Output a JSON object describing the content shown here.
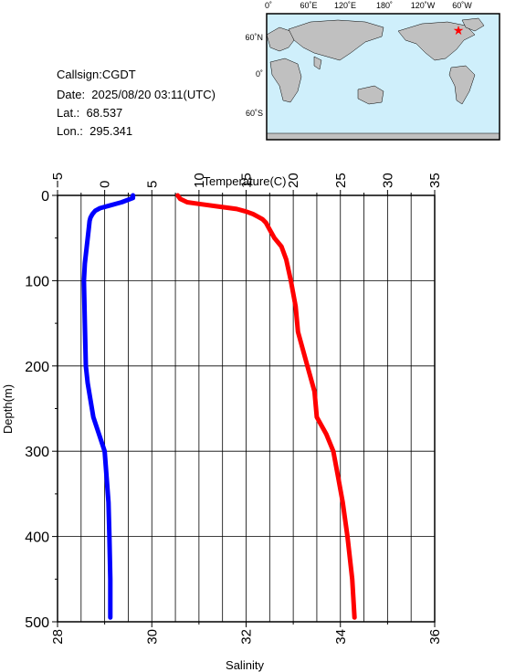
{
  "info": {
    "callsign": "Callsign:CGDT",
    "date": "Date:  2025/08/20 03:11(UTC)",
    "lat": "Lat.:  68.537",
    "lon": "Lon.:  295.341"
  },
  "map": {
    "top_labels": [
      "0˚",
      "60˚E",
      "120˚E",
      "180˚",
      "120˚W",
      "60˚W"
    ],
    "side_labels": [
      "60˚N",
      "0˚",
      "60˚S"
    ],
    "ocean_color": "#cfeffb",
    "land_color": "#c0c0c0",
    "marker": "star-icon",
    "marker_color": "#ff0000"
  },
  "chart_data": {
    "type": "line",
    "x_top_label": "Temperature(C)",
    "x_bottom_label": "Salinity",
    "ylabel": "Depth(m)",
    "temperature_ticks": [
      "−5",
      "0",
      "5",
      "10",
      "15",
      "20",
      "25",
      "30",
      "35"
    ],
    "salinity_ticks": [
      "28",
      "30",
      "32",
      "34",
      "36"
    ],
    "depth_ticks": [
      "0",
      "100",
      "200",
      "300",
      "400",
      "500"
    ],
    "xlim_temperature": [
      -5,
      35
    ],
    "xlim_salinity": [
      28,
      36
    ],
    "ylim_depth": [
      500,
      0
    ],
    "series": [
      {
        "axis": "temperature",
        "color": "#0000ff",
        "depth": [
          0,
          3,
          8,
          12,
          15,
          18,
          22,
          26,
          30,
          40,
          60,
          80,
          100,
          150,
          200,
          220,
          240,
          260,
          280,
          300,
          330,
          360,
          400,
          450,
          495
        ],
        "values": [
          3.0,
          3.0,
          1.8,
          0.5,
          -0.5,
          -1.0,
          -1.3,
          -1.5,
          -1.6,
          -1.7,
          -1.9,
          -2.1,
          -2.2,
          -2.1,
          -2.0,
          -1.8,
          -1.5,
          -1.2,
          -0.6,
          0.0,
          0.2,
          0.4,
          0.5,
          0.6,
          0.6
        ]
      },
      {
        "axis": "salinity",
        "color": "#ff0000",
        "depth": [
          0,
          4,
          8,
          10,
          13,
          16,
          19,
          22,
          25,
          28,
          32,
          40,
          50,
          60,
          75,
          100,
          130,
          160,
          200,
          230,
          260,
          280,
          300,
          330,
          360,
          400,
          450,
          495
        ],
        "values": [
          30.55,
          30.6,
          30.75,
          31.0,
          31.4,
          31.8,
          32.0,
          32.15,
          32.25,
          32.35,
          32.42,
          32.5,
          32.6,
          32.75,
          32.85,
          32.95,
          33.05,
          33.1,
          33.3,
          33.45,
          33.5,
          33.7,
          33.85,
          33.95,
          34.05,
          34.15,
          34.25,
          34.3
        ]
      }
    ],
    "grid": true
  }
}
